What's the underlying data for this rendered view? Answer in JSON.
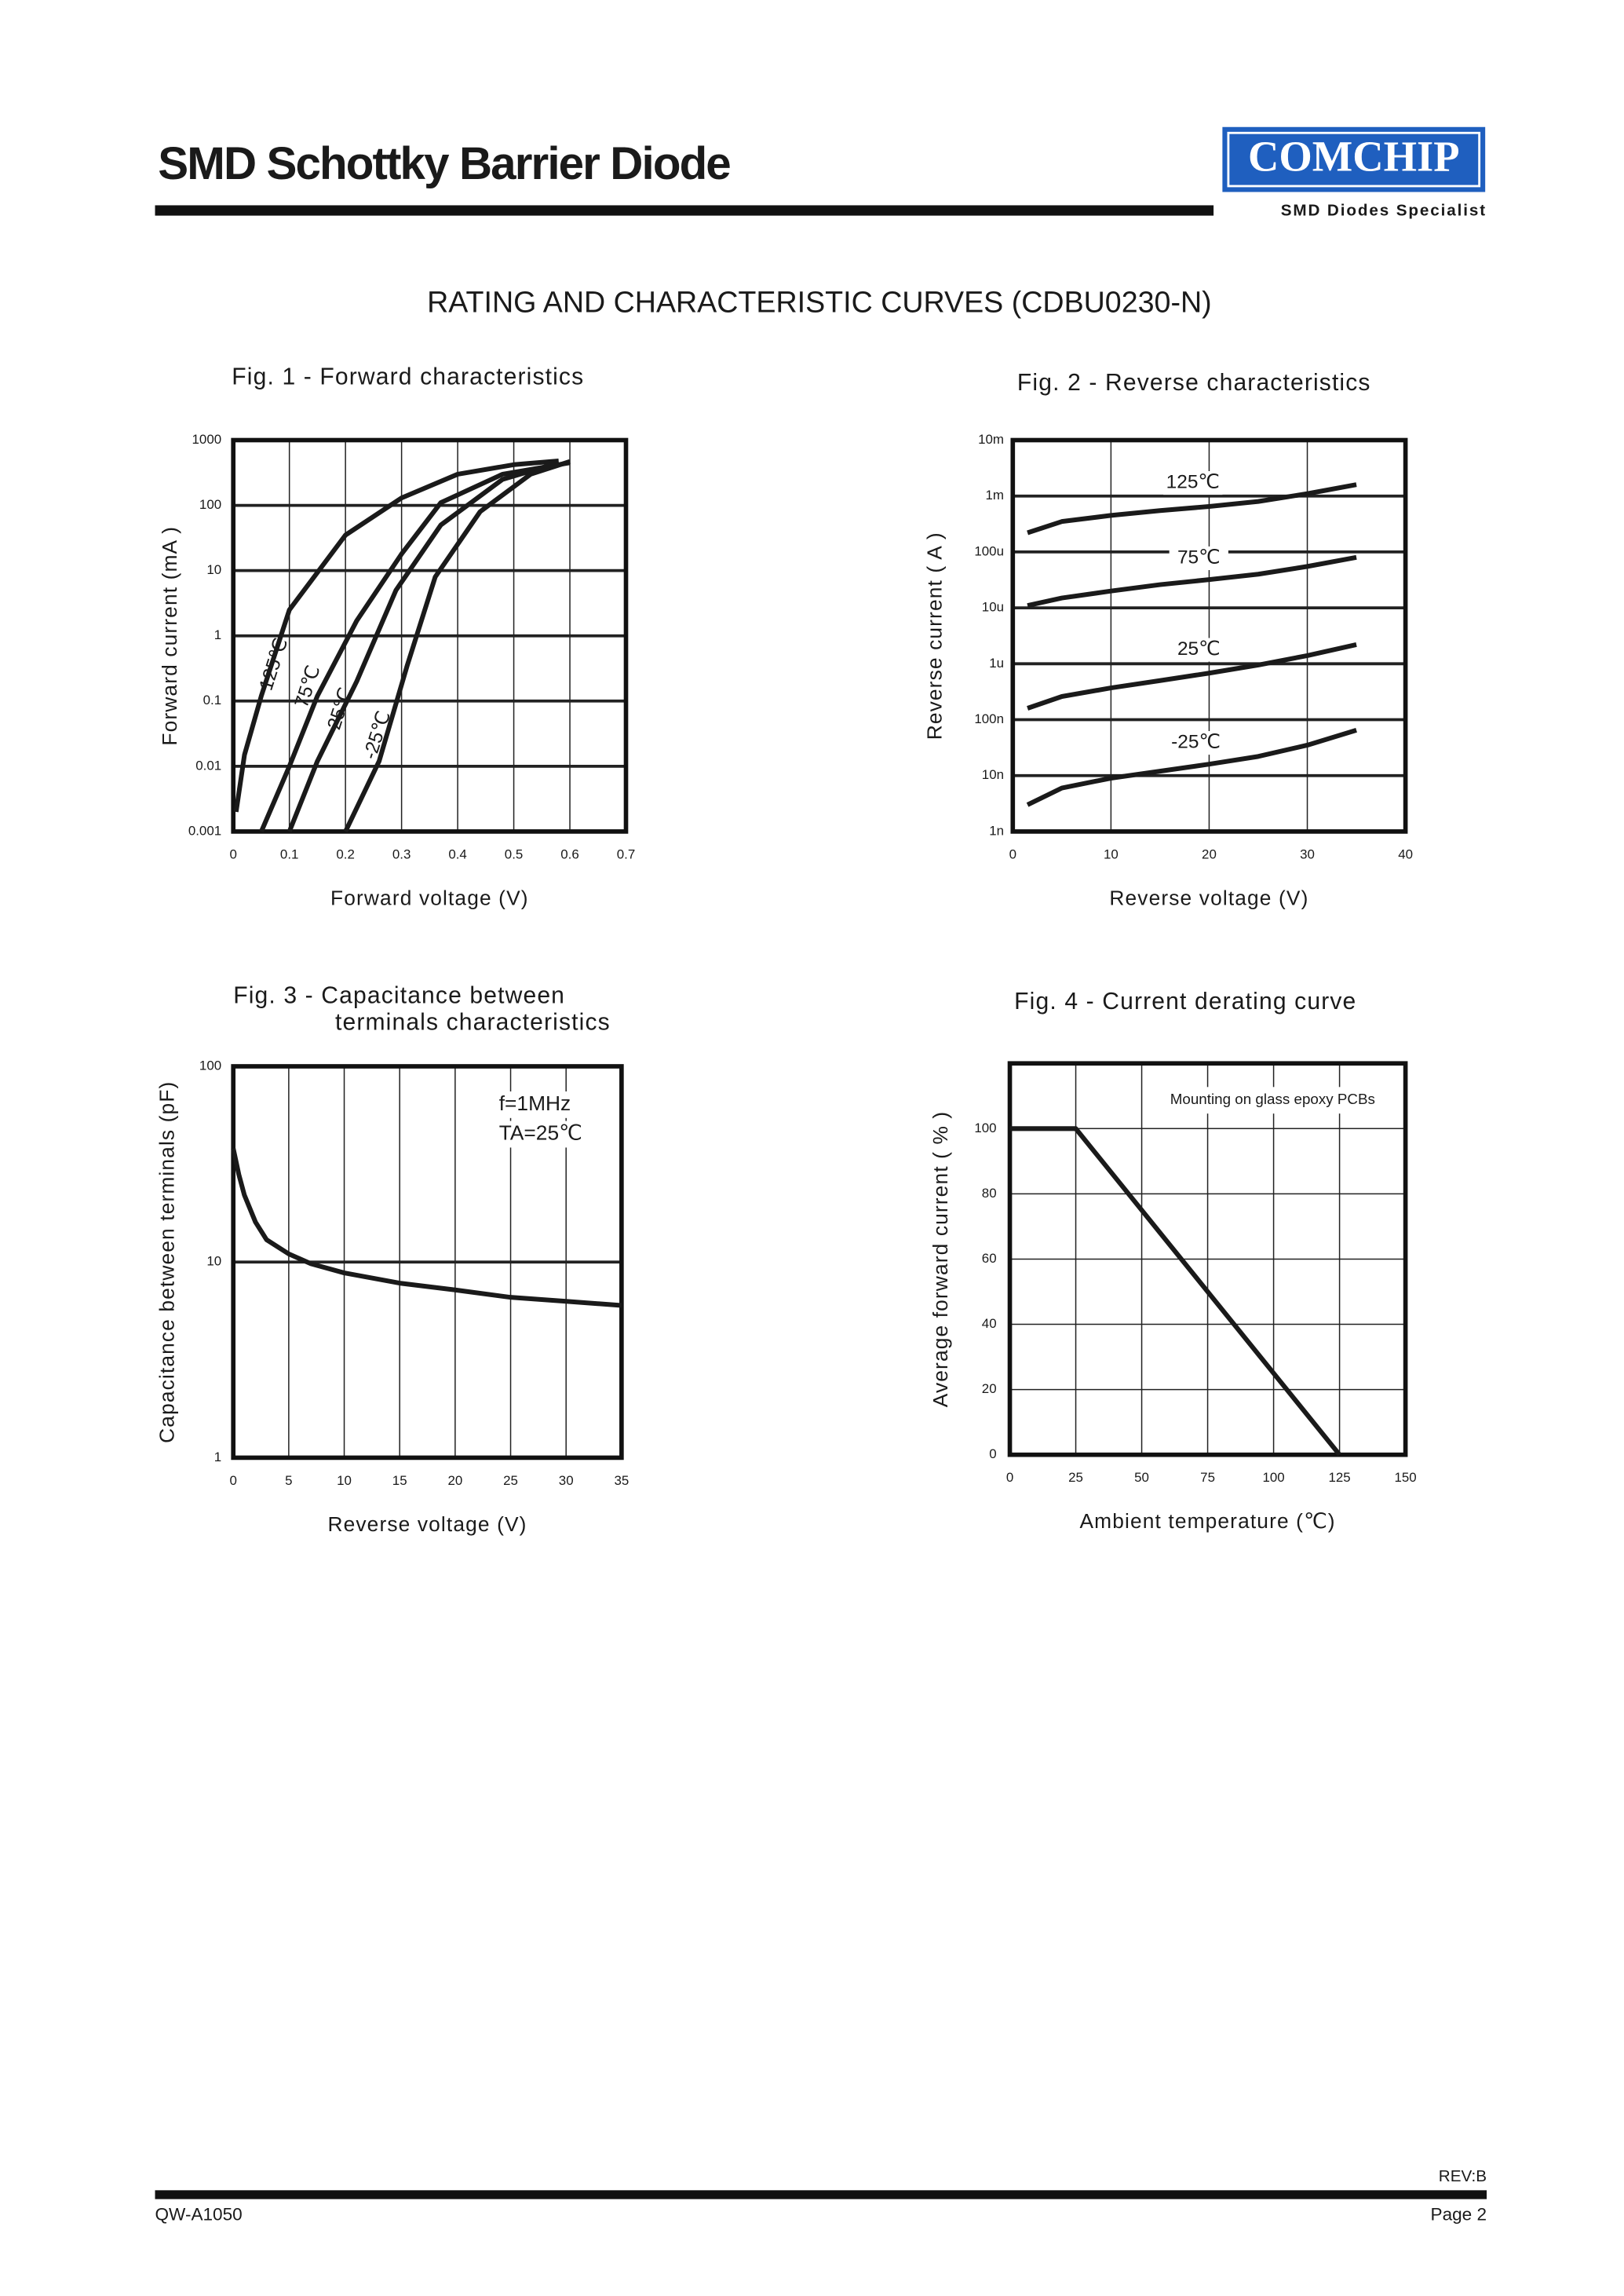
{
  "header": {
    "title": "SMD Schottky Barrier Diode",
    "logo": "COMCHIP",
    "tagline": "SMD Diodes Specialist"
  },
  "heading": "RATING AND CHARACTERISTIC CURVES (CDBU0230-N)",
  "chart_data": [
    {
      "type": "line",
      "title": "Fig. 1 -  Forward characteristics",
      "xlabel": "Forward voltage (V)",
      "ylabel": "Forward current (mA )",
      "xlim": [
        0,
        0.7
      ],
      "xticks": [
        0,
        0.1,
        0.2,
        0.3,
        0.4,
        0.5,
        0.6,
        0.7
      ],
      "ylim": [
        0.001,
        1000
      ],
      "yticks": [
        0.001,
        0.01,
        0.1,
        1,
        10,
        100,
        1000
      ],
      "ylog": true,
      "grid": true,
      "series": [
        {
          "name": "125℃",
          "color": "#1a1a1a",
          "x": [
            0.005,
            0.02,
            0.05,
            0.1,
            0.2,
            0.3,
            0.4,
            0.5,
            0.58
          ],
          "values": [
            0.002,
            0.015,
            0.12,
            2.5,
            35,
            130,
            300,
            420,
            480
          ]
        },
        {
          "name": "75℃",
          "color": "#1a1a1a",
          "x": [
            0.05,
            0.1,
            0.15,
            0.22,
            0.3,
            0.37,
            0.48,
            0.6
          ],
          "values": [
            0.001,
            0.01,
            0.12,
            1.7,
            18,
            110,
            300,
            450
          ]
        },
        {
          "name": "25℃",
          "color": "#1a1a1a",
          "x": [
            0.1,
            0.15,
            0.22,
            0.29,
            0.37,
            0.48,
            0.58
          ],
          "values": [
            0.001,
            0.012,
            0.2,
            5,
            50,
            250,
            450
          ]
        },
        {
          "name": "-25℃",
          "color": "#1a1a1a",
          "x": [
            0.2,
            0.26,
            0.31,
            0.36,
            0.44,
            0.53,
            0.6
          ],
          "values": [
            0.001,
            0.012,
            0.35,
            8,
            80,
            300,
            470
          ]
        }
      ]
    },
    {
      "type": "line",
      "title": "Fig. 2 -  Reverse characteristics",
      "xlabel": "Reverse voltage (V)",
      "ylabel": "Reverse current ( A )",
      "xlim": [
        0,
        40
      ],
      "xticks": [
        0,
        10,
        20,
        30,
        40
      ],
      "ylim": [
        1e-09,
        0.01
      ],
      "yticks": [
        {
          "value": 1e-09,
          "label": "1n"
        },
        {
          "value": 1e-08,
          "label": "10n"
        },
        {
          "value": 1e-07,
          "label": "100n"
        },
        {
          "value": 1e-06,
          "label": "1u"
        },
        {
          "value": 1e-05,
          "label": "10u"
        },
        {
          "value": 0.0001,
          "label": "100u"
        },
        {
          "value": 0.001,
          "label": "1m"
        },
        {
          "value": 0.01,
          "label": "10m"
        }
      ],
      "ylog": true,
      "grid": true,
      "series": [
        {
          "name": "125℃",
          "color": "#1a1a1a",
          "x": [
            1.5,
            5,
            10,
            15,
            20,
            25,
            30,
            35
          ],
          "values": [
            0.00022,
            0.00035,
            0.00045,
            0.00055,
            0.00065,
            0.0008,
            0.0011,
            0.0016
          ]
        },
        {
          "name": "75℃",
          "color": "#1a1a1a",
          "x": [
            1.5,
            5,
            10,
            15,
            20,
            25,
            30,
            35
          ],
          "values": [
            1.1e-05,
            1.5e-05,
            2e-05,
            2.6e-05,
            3.2e-05,
            4e-05,
            5.5e-05,
            8e-05
          ]
        },
        {
          "name": "25℃",
          "color": "#1a1a1a",
          "x": [
            1.5,
            5,
            10,
            15,
            20,
            25,
            30,
            35
          ],
          "values": [
            1.6e-07,
            2.6e-07,
            3.7e-07,
            5e-07,
            6.8e-07,
            9.5e-07,
            1.4e-06,
            2.2e-06
          ]
        },
        {
          "name": "-25℃",
          "color": "#1a1a1a",
          "x": [
            1.5,
            5,
            10,
            15,
            20,
            25,
            30,
            35
          ],
          "values": [
            3e-09,
            6e-09,
            9e-09,
            1.2e-08,
            1.6e-08,
            2.2e-08,
            3.5e-08,
            6.5e-08
          ]
        }
      ]
    },
    {
      "type": "line",
      "title": "Fig. 3 -  Capacitance between",
      "subtitle": "terminals characteristics",
      "xlabel": "Reverse voltage (V)",
      "ylabel": "Capacitance between terminals (pF)",
      "xlim": [
        0,
        35
      ],
      "xticks": [
        0,
        5,
        10,
        15,
        20,
        25,
        30,
        35
      ],
      "ylim": [
        1,
        100
      ],
      "yticks": [
        1,
        10,
        100
      ],
      "ylog": true,
      "grid": true,
      "annotations": [
        "f=1MHz",
        "TA=25℃"
      ],
      "series": [
        {
          "color": "#1a1a1a",
          "x": [
            0,
            0.5,
            1,
            2,
            3,
            5,
            7,
            10,
            15,
            20,
            25,
            30,
            35
          ],
          "values": [
            38,
            28,
            22,
            16,
            13,
            11,
            9.8,
            8.8,
            7.8,
            7.2,
            6.6,
            6.3,
            6
          ]
        }
      ]
    },
    {
      "type": "line",
      "title": "Fig. 4 - Current derating curve",
      "xlabel": "Ambient temperature (℃)",
      "ylabel": "Average forward current ( % )",
      "xlim": [
        0,
        150
      ],
      "xticks": [
        0,
        25,
        50,
        75,
        100,
        125,
        150
      ],
      "ylim": [
        0,
        120
      ],
      "yticks": [
        0,
        20,
        40,
        60,
        80,
        100
      ],
      "ylog": false,
      "grid": true,
      "annotations": [
        "Mounting on glass epoxy PCBs"
      ],
      "series": [
        {
          "color": "#1a1a1a",
          "x": [
            0,
            25,
            125
          ],
          "values": [
            100,
            100,
            0
          ]
        }
      ]
    }
  ],
  "footer": {
    "revision": "REV:B",
    "document_number": "QW-A1050",
    "page": "Page 2"
  }
}
